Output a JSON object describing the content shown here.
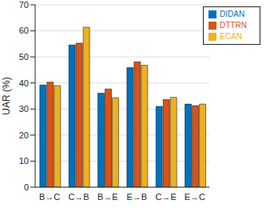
{
  "chart_data": {
    "type": "bar",
    "y_label": "UAR (%)",
    "categories": [
      "B→C",
      "C→B",
      "B→E",
      "E→B",
      "C→E",
      "E→C"
    ],
    "series": [
      {
        "name": "DIDAN",
        "color": "#0072BD",
        "values": [
          39.2,
          54.6,
          36.1,
          45.9,
          31.0,
          31.9
        ]
      },
      {
        "name": "DTTRN",
        "color": "#D95319",
        "values": [
          40.3,
          55.3,
          37.7,
          48.1,
          33.6,
          31.3
        ]
      },
      {
        "name": "ECAN",
        "color": "#EDB120",
        "values": [
          39.0,
          61.4,
          34.3,
          46.8,
          34.5,
          31.9
        ]
      }
    ],
    "ylim": [
      0,
      70
    ],
    "yticks": [
      0,
      10,
      20,
      30,
      40,
      50,
      60,
      70
    ],
    "grid": true,
    "legend": "top-right"
  }
}
